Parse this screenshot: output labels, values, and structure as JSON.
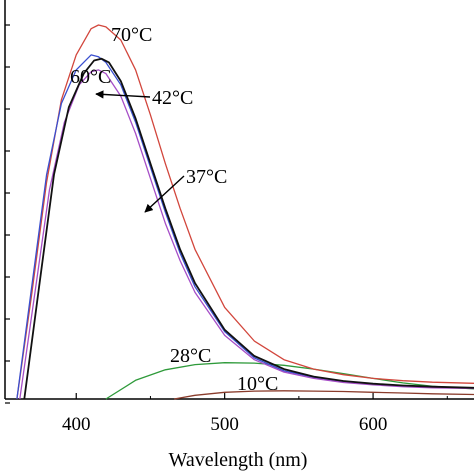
{
  "chart_data": {
    "type": "line",
    "xlabel": "Wavelength (nm)",
    "ylabel": "",
    "xlim": [
      352,
      668
    ],
    "ylim": [
      0,
      1
    ],
    "x_ticks": [
      400,
      500,
      600
    ],
    "x_tick_labels": [
      "400",
      "500",
      "600"
    ],
    "y_tick_count": 10,
    "grid": false,
    "legend": "none",
    "series": [
      {
        "name": "70°C",
        "color": "#d2463c",
        "x": [
          360,
          370,
          380,
          390,
          400,
          410,
          415,
          420,
          430,
          440,
          450,
          460,
          470,
          480,
          500,
          520,
          540,
          560,
          580,
          600,
          620,
          640,
          668
        ],
        "y": [
          0.0,
          0.28,
          0.58,
          0.8,
          0.92,
          0.99,
          1.0,
          0.995,
          0.96,
          0.88,
          0.76,
          0.63,
          0.51,
          0.4,
          0.245,
          0.155,
          0.105,
          0.08,
          0.065,
          0.055,
          0.049,
          0.045,
          0.042
        ]
      },
      {
        "name": "60°C",
        "color": "#3a4fcf",
        "x": [
          360,
          370,
          380,
          390,
          400,
          410,
          415,
          420,
          430,
          440,
          450,
          460,
          470,
          480,
          500,
          520,
          540,
          560,
          580,
          600,
          620,
          640,
          668
        ],
        "y": [
          0.0,
          0.3,
          0.6,
          0.79,
          0.88,
          0.92,
          0.915,
          0.9,
          0.84,
          0.74,
          0.62,
          0.5,
          0.39,
          0.3,
          0.18,
          0.11,
          0.075,
          0.058,
          0.047,
          0.04,
          0.035,
          0.032,
          0.03
        ]
      },
      {
        "name": "42°C",
        "color": "#111111",
        "x": [
          365,
          375,
          385,
          395,
          405,
          412,
          417,
          422,
          430,
          440,
          450,
          460,
          470,
          480,
          500,
          520,
          540,
          560,
          580,
          600,
          620,
          640,
          668
        ],
        "y": [
          0.0,
          0.3,
          0.6,
          0.78,
          0.87,
          0.905,
          0.91,
          0.9,
          0.85,
          0.75,
          0.63,
          0.51,
          0.4,
          0.31,
          0.185,
          0.115,
          0.08,
          0.06,
          0.048,
          0.041,
          0.036,
          0.033,
          0.03
        ]
      },
      {
        "name": "37°C",
        "color": "#a64ec7",
        "x": [
          362,
          372,
          382,
          392,
          402,
          410,
          415,
          420,
          430,
          440,
          450,
          460,
          470,
          480,
          500,
          520,
          540,
          560,
          580,
          600,
          620,
          640,
          668
        ],
        "y": [
          0.0,
          0.28,
          0.56,
          0.74,
          0.84,
          0.875,
          0.88,
          0.87,
          0.81,
          0.71,
          0.59,
          0.47,
          0.37,
          0.285,
          0.17,
          0.105,
          0.072,
          0.055,
          0.044,
          0.038,
          0.033,
          0.03,
          0.028
        ]
      },
      {
        "name": "28°C",
        "color": "#2e9a3a",
        "x": [
          420,
          440,
          460,
          480,
          500,
          520,
          540,
          560,
          580,
          600,
          620,
          640,
          668
        ],
        "y": [
          0.0,
          0.05,
          0.078,
          0.092,
          0.097,
          0.096,
          0.09,
          0.08,
          0.068,
          0.055,
          0.043,
          0.034,
          0.027
        ]
      },
      {
        "name": "10°C",
        "color": "#8a3c2c",
        "x": [
          466,
          480,
          500,
          520,
          540,
          560,
          580,
          600,
          620,
          640,
          668
        ],
        "y": [
          0.0,
          0.01,
          0.018,
          0.021,
          0.022,
          0.021,
          0.02,
          0.018,
          0.016,
          0.014,
          0.012
        ]
      }
    ],
    "annotations": [
      {
        "text": "70°C"
      },
      {
        "text": "60°C"
      },
      {
        "text": "42°C"
      },
      {
        "text": "37°C"
      },
      {
        "text": "28°C"
      },
      {
        "text": "10°C"
      }
    ]
  }
}
